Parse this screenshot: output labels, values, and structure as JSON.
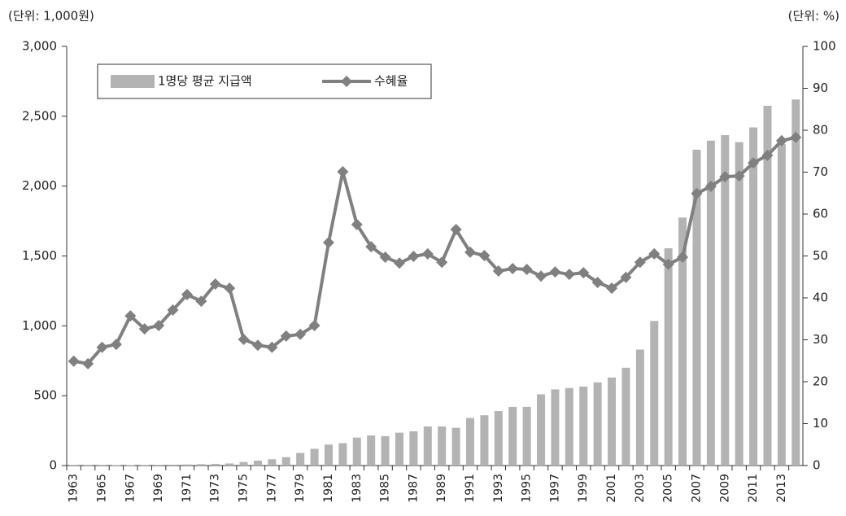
{
  "chart_data": {
    "type": "bar",
    "left_unit": "(단위: 1,000원)",
    "right_unit": "(단위: %)",
    "categories": [
      "1963",
      null,
      "1965",
      null,
      "1967",
      null,
      "1969",
      null,
      "1971",
      null,
      "1973",
      null,
      "1975",
      null,
      "1977",
      null,
      "1979",
      null,
      "1981",
      null,
      "1983",
      null,
      "1985",
      null,
      "1987",
      null,
      "1989",
      null,
      "1991",
      null,
      "1993",
      null,
      "1995",
      null,
      "1997",
      null,
      "1999",
      null,
      "2001",
      null,
      "2003",
      null,
      "2005",
      null,
      "2007",
      null,
      "2009",
      null,
      "2011",
      null,
      "2013",
      null
    ],
    "series": [
      {
        "name": "1명당 평균 지급액",
        "type": "bar",
        "color": "#b3b3b3",
        "axis": "y",
        "values": [
          2,
          2,
          2,
          3,
          3,
          4,
          5,
          6,
          8,
          10,
          12,
          15,
          25,
          35,
          45,
          60,
          90,
          120,
          150,
          160,
          200,
          215,
          210,
          235,
          245,
          280,
          280,
          270,
          340,
          360,
          390,
          420,
          420,
          510,
          545,
          555,
          565,
          595,
          630,
          700,
          830,
          1035,
          1555,
          1775,
          2260,
          2325,
          2365,
          2315,
          2420,
          2575,
          2300,
          2620
        ]
      },
      {
        "name": "수혜율",
        "type": "line",
        "color": "#808080",
        "axis": "y2",
        "values": [
          24.9,
          24.3,
          28.2,
          28.9,
          35.7,
          32.6,
          33.4,
          37.1,
          40.8,
          39.2,
          43.3,
          42.3,
          30.1,
          28.7,
          28.2,
          30.9,
          31.3,
          33.4,
          53.2,
          70.1,
          57.5,
          52.2,
          49.7,
          48.3,
          49.9,
          50.5,
          48.5,
          56.3,
          50.9,
          50.1,
          46.4,
          47.0,
          46.8,
          45.2,
          46.2,
          45.6,
          46.0,
          43.7,
          42.3,
          44.9,
          48.5,
          50.5,
          48.0,
          49.7,
          64.9,
          66.6,
          68.9,
          69.1,
          72.2,
          74.0,
          77.5,
          78.3
        ]
      }
    ],
    "ylim": [
      0,
      3000
    ],
    "yticks": [
      0,
      500,
      {
        "value": 1000,
        "label": "1,000"
      },
      {
        "value": 1500,
        "label": "1,500"
      },
      {
        "value": 2000,
        "label": "2,000"
      },
      {
        "value": 2500,
        "label": "2,500"
      },
      {
        "value": 3000,
        "label": "3,000"
      }
    ],
    "y2lim": [
      0,
      100
    ],
    "y2ticks": [
      0,
      10,
      20,
      30,
      40,
      50,
      60,
      70,
      80,
      90,
      100
    ],
    "grid": false
  }
}
